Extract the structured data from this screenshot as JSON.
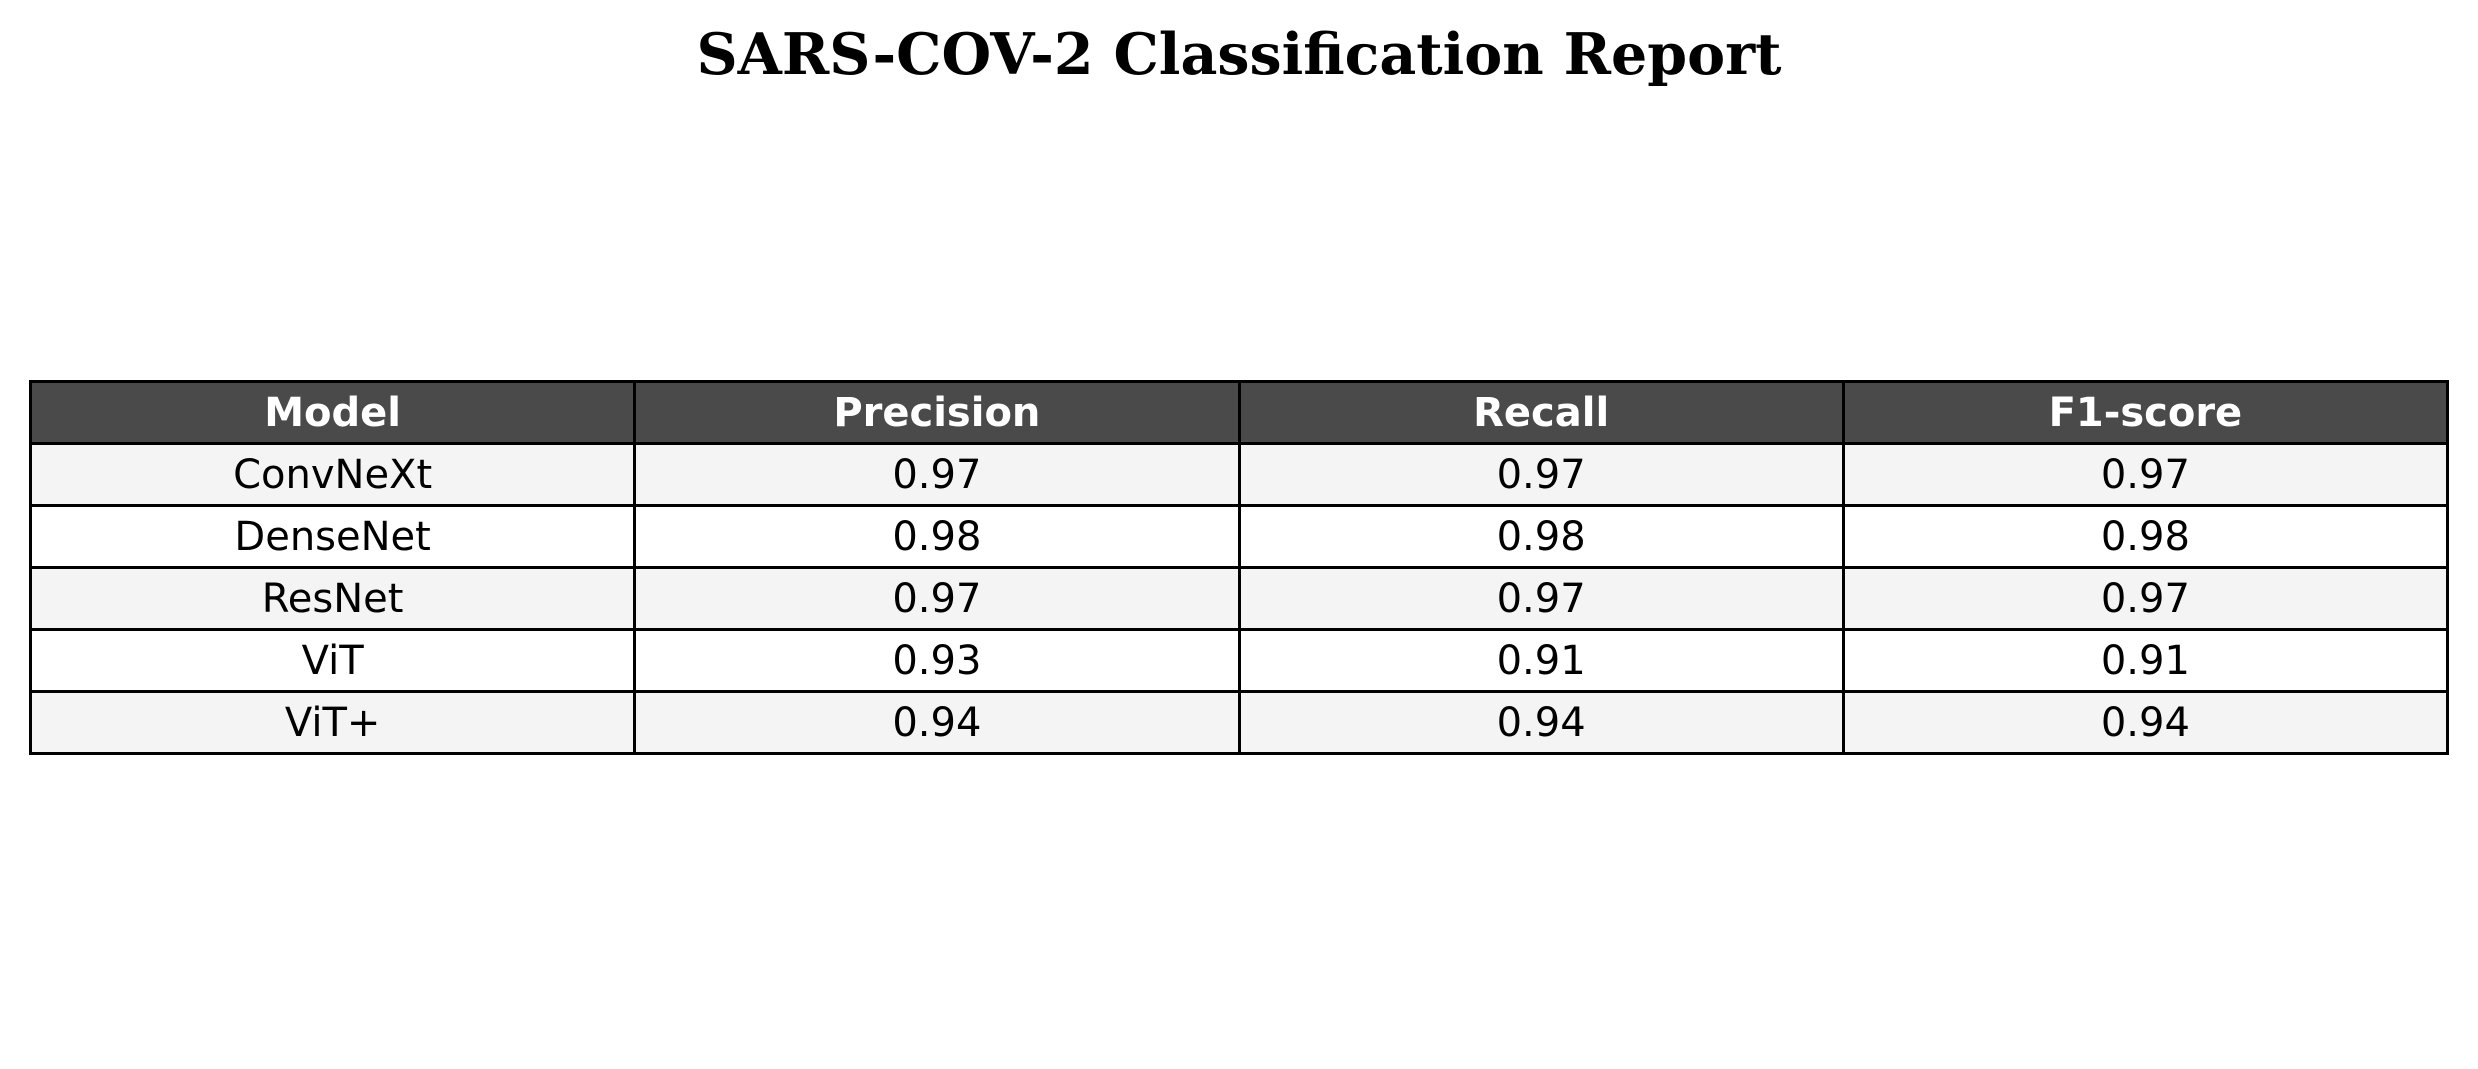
{
  "chart_data": {
    "type": "table",
    "title": "SARS-COV-2 Classification Report",
    "columns": [
      "Model",
      "Precision",
      "Recall",
      "F1-score"
    ],
    "rows": [
      [
        "ConvNeXt",
        "0.97",
        "0.97",
        "0.97"
      ],
      [
        "DenseNet",
        "0.98",
        "0.98",
        "0.98"
      ],
      [
        "ResNet",
        "0.97",
        "0.97",
        "0.97"
      ],
      [
        "ViT",
        "0.93",
        "0.91",
        "0.91"
      ],
      [
        "ViT+",
        "0.94",
        "0.94",
        "0.94"
      ]
    ],
    "colors": {
      "header_background": "#4a4a4a",
      "header_text": "#ffffff",
      "row_band_background": "#f4f4f4",
      "row_background": "#ffffff",
      "border": "#000000"
    }
  }
}
